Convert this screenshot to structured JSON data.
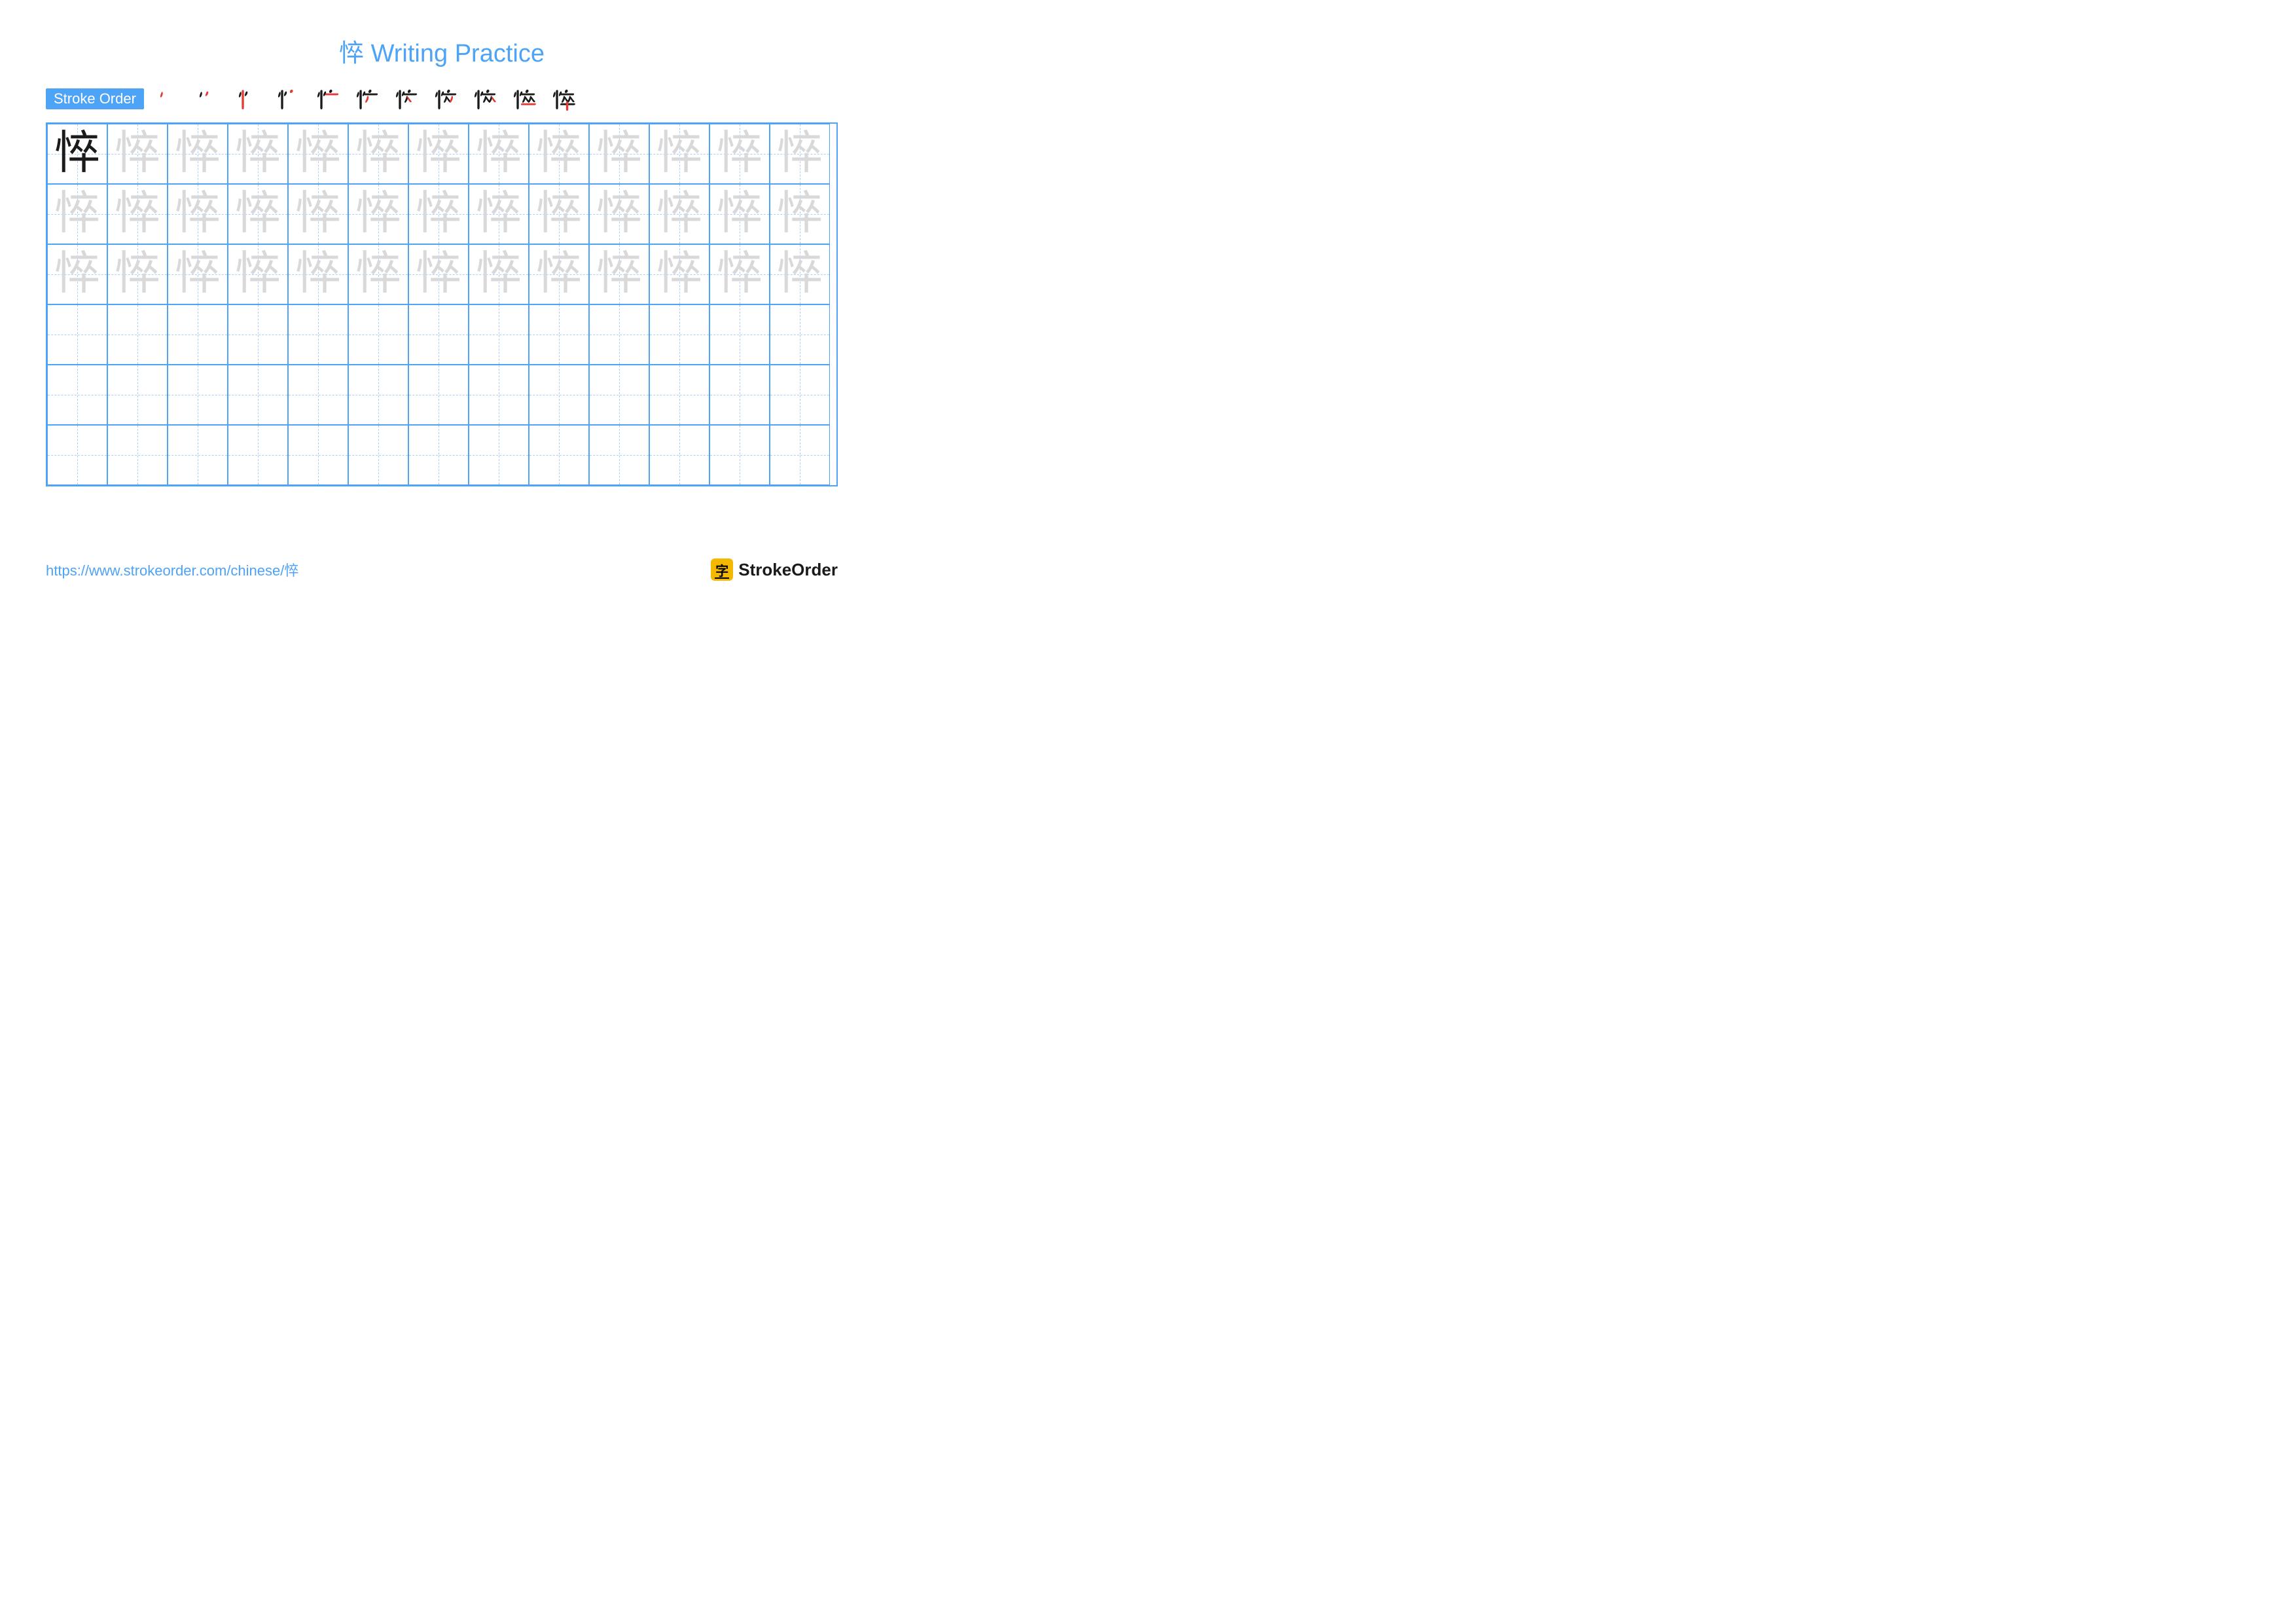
{
  "title": "悴 Writing Practice",
  "character": "悴",
  "stroke_label": "Stroke Order",
  "stroke_count": 11,
  "grid": {
    "rows": 6,
    "cols": 13,
    "cell_size": 92,
    "trace_rows": 3,
    "model_cells": 1
  },
  "colors": {
    "title": "#4da3f5",
    "label_bg": "#4da3f5",
    "grid_border": "#4da3f5",
    "guide_dash": "#a8d0fb",
    "trace_char": "#d9d9d9",
    "model_char": "#1a1a1a",
    "stroke_black": "#1a1a1a",
    "stroke_red": "#e53935",
    "url": "#4da3f5",
    "logo_bg": "#f5b800"
  },
  "url": "https://www.strokeorder.com/chinese/悴",
  "logo_text": "StrokeOrder",
  "logo_char": "字"
}
